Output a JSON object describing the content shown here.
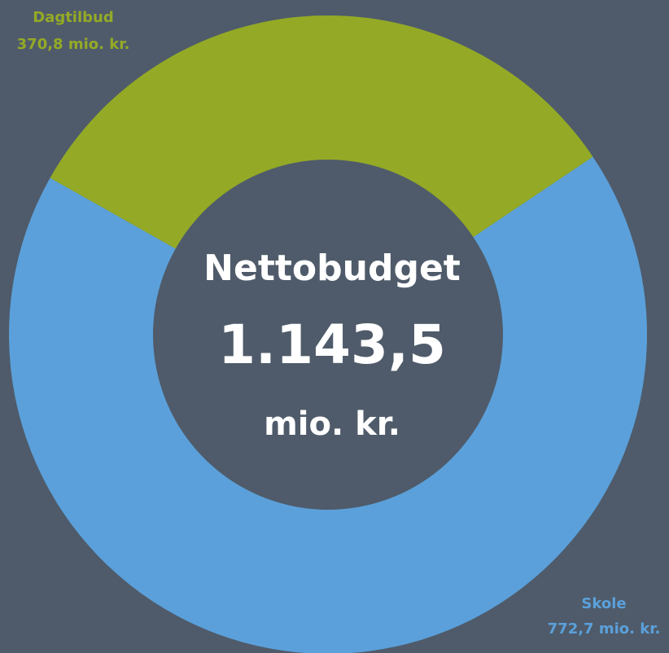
{
  "chart_data": {
    "type": "pie",
    "donut": true,
    "categories": [
      "Dagtilbud",
      "Skole"
    ],
    "values": [
      370.8,
      772.7
    ],
    "value_labels": [
      "370,8 mio. kr.",
      "772,7 mio. kr."
    ],
    "colors": [
      "#94aa26",
      "#5ba0da"
    ],
    "center_text": [
      "Nettobudget",
      "1.143,5",
      "mio. kr."
    ]
  }
}
